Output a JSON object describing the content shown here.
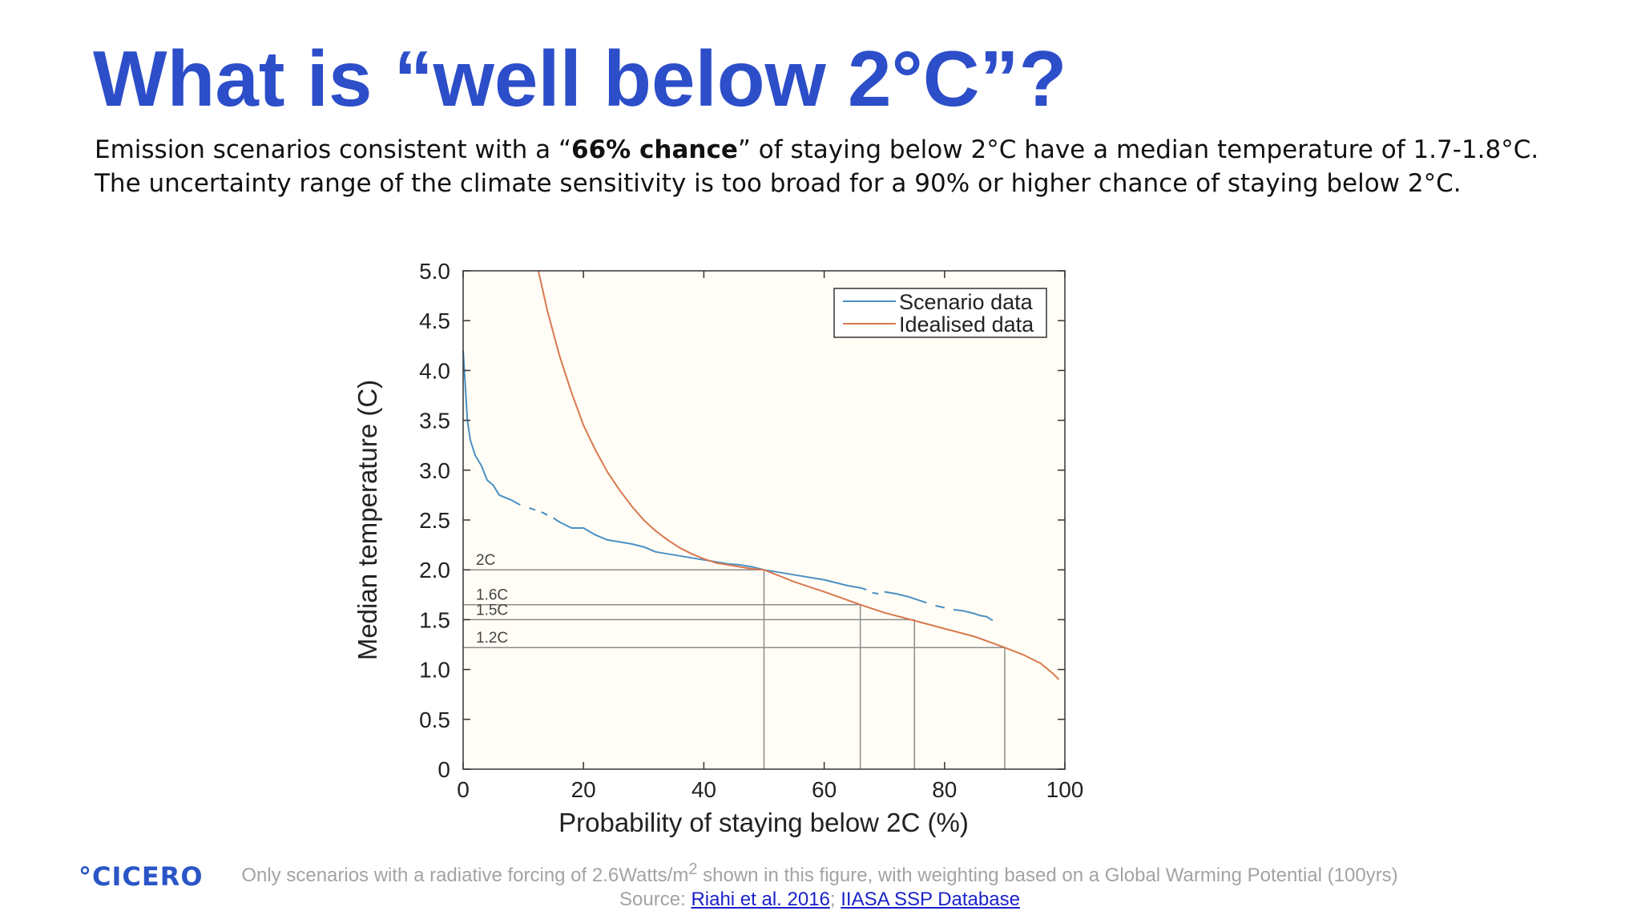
{
  "slide": {
    "title": "What is “well below 2°C”?",
    "body_line1_pre": "Emission scenarios consistent with a “",
    "body_line1_bold": "66% chance",
    "body_line1_post": "” of staying below 2°C have a median temperature of 1.7-1.8°C.",
    "body_line2": "The uncertainty range of the climate sensitivity is too broad for a 90% or higher chance of staying below 2°C."
  },
  "footer": {
    "logo_text": "°CICERO",
    "note_pre": "Only scenarios with a radiative forcing of 2.6Watts/m",
    "note_sup": "2",
    "note_post": " shown in this figure, with weighting based on a Global Warming Potential (100yrs)",
    "source_label": "Source: ",
    "source_link1": "Riahi et al. 2016",
    "source_sep": "; ",
    "source_link2": "IIASA SSP Database"
  },
  "colors": {
    "title": "#2d4ec9",
    "scenario_line": "#4a90c4",
    "idealised_line": "#d9784f",
    "plot_background": "#fffdf5",
    "reference_lines": "#8c8c8c"
  },
  "chart_data": {
    "type": "line",
    "title": "",
    "xlabel": "Probability of staying below 2C (%)",
    "ylabel": "Median temperature (C)",
    "xlim": [
      0,
      100
    ],
    "ylim": [
      0,
      5
    ],
    "x_ticks": [
      "0",
      "20",
      "40",
      "60",
      "80",
      "100"
    ],
    "y_ticks": [
      "0",
      "0.5",
      "1.0",
      "1.5",
      "2.0",
      "2.5",
      "3.0",
      "3.5",
      "4.0",
      "4.5",
      "5.0"
    ],
    "legend_position": "top-right",
    "grid": false,
    "series": [
      {
        "name": "Scenario data",
        "color": "#4a90c4",
        "segments": [
          [
            [
              0,
              4.2
            ],
            [
              0.3,
              3.9
            ],
            [
              0.7,
              3.5
            ],
            [
              1.2,
              3.3
            ],
            [
              2,
              3.15
            ],
            [
              3,
              3.05
            ],
            [
              4,
              2.9
            ],
            [
              5,
              2.85
            ],
            [
              6,
              2.75
            ],
            [
              8,
              2.7
            ],
            [
              9.5,
              2.65
            ]
          ],
          [
            [
              11,
              2.62
            ],
            [
              12,
              2.6
            ]
          ],
          [
            [
              13,
              2.58
            ],
            [
              14,
              2.55
            ]
          ],
          [
            [
              15,
              2.52
            ],
            [
              16,
              2.48
            ],
            [
              18,
              2.42
            ],
            [
              20,
              2.42
            ],
            [
              22,
              2.35
            ],
            [
              24,
              2.3
            ],
            [
              26,
              2.28
            ],
            [
              28,
              2.26
            ],
            [
              30,
              2.23
            ],
            [
              32,
              2.18
            ],
            [
              34,
              2.16
            ],
            [
              36,
              2.14
            ],
            [
              38,
              2.12
            ],
            [
              40,
              2.1
            ],
            [
              42,
              2.08
            ],
            [
              44,
              2.06
            ],
            [
              46,
              2.05
            ],
            [
              48,
              2.03
            ],
            [
              50,
              2.0
            ],
            [
              52,
              1.98
            ],
            [
              54,
              1.96
            ],
            [
              56,
              1.94
            ],
            [
              58,
              1.92
            ],
            [
              60,
              1.9
            ],
            [
              62,
              1.87
            ],
            [
              64,
              1.84
            ],
            [
              66,
              1.82
            ],
            [
              67,
              1.8
            ]
          ],
          [
            [
              68,
              1.77
            ],
            [
              69,
              1.76
            ]
          ],
          [
            [
              70,
              1.78
            ],
            [
              72,
              1.76
            ],
            [
              74,
              1.73
            ],
            [
              76,
              1.69
            ],
            [
              77,
              1.67
            ]
          ],
          [
            [
              78.5,
              1.64
            ],
            [
              80,
              1.62
            ]
          ],
          [
            [
              81.5,
              1.6
            ],
            [
              83,
              1.59
            ],
            [
              85,
              1.56
            ],
            [
              86,
              1.54
            ],
            [
              87,
              1.53
            ],
            [
              88,
              1.49
            ]
          ]
        ]
      },
      {
        "name": "Idealised data",
        "color": "#d9784f",
        "points": [
          [
            12.5,
            5.0
          ],
          [
            14,
            4.6
          ],
          [
            16,
            4.15
          ],
          [
            18,
            3.78
          ],
          [
            20,
            3.45
          ],
          [
            22,
            3.2
          ],
          [
            24,
            2.98
          ],
          [
            26,
            2.8
          ],
          [
            28,
            2.64
          ],
          [
            30,
            2.5
          ],
          [
            32,
            2.39
          ],
          [
            34,
            2.3
          ],
          [
            36,
            2.22
          ],
          [
            38,
            2.16
          ],
          [
            40,
            2.11
          ],
          [
            42,
            2.07
          ],
          [
            44,
            2.05
          ],
          [
            46,
            2.03
          ],
          [
            48,
            2.01
          ],
          [
            50,
            2.0
          ],
          [
            55,
            1.88
          ],
          [
            60,
            1.78
          ],
          [
            66,
            1.65
          ],
          [
            70,
            1.57
          ],
          [
            75,
            1.49
          ],
          [
            80,
            1.41
          ],
          [
            85,
            1.33
          ],
          [
            90,
            1.22
          ],
          [
            93,
            1.15
          ],
          [
            96,
            1.06
          ],
          [
            98,
            0.96
          ],
          [
            99,
            0.9
          ]
        ]
      }
    ],
    "reference_lines": [
      {
        "label": "2C",
        "y": 2.0,
        "x": 50
      },
      {
        "label": "1.6C",
        "y": 1.65,
        "x": 66
      },
      {
        "label": "1.5C",
        "y": 1.5,
        "x": 75
      },
      {
        "label": "1.2C",
        "y": 1.22,
        "x": 90
      }
    ]
  }
}
